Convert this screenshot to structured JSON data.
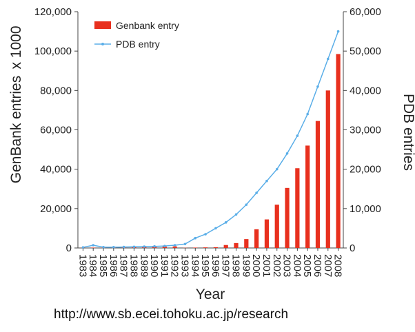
{
  "chart_data": {
    "type": "bar",
    "xlabel": "Year",
    "y_left_label": "GenBank entries",
    "y_left_unit": "x 1000",
    "y_right_label": "PDB entries",
    "y_left_lim": [
      0,
      120000
    ],
    "y_right_lim": [
      0,
      60000
    ],
    "y_left_ticks": [
      "0",
      "20,000",
      "40,000",
      "60,000",
      "80,000",
      "100,000",
      "120,000"
    ],
    "y_right_ticks": [
      "0",
      "10,000",
      "20,000",
      "30,000",
      "40,000",
      "50,000",
      "60,000"
    ],
    "grid": false,
    "legend_position": "top-left",
    "categories": [
      "1983",
      "1984",
      "1985",
      "1986",
      "1987",
      "1988",
      "1989",
      "1990",
      "1991",
      "1992",
      "1993",
      "1994",
      "1995",
      "1996",
      "1997",
      "1998",
      "1999",
      "2000",
      "2001",
      "2002",
      "2003",
      "2004",
      "2005",
      "2006",
      "2007",
      "2008"
    ],
    "series": [
      {
        "name": "Genbank entry",
        "type": "bar",
        "axis": "left",
        "color": "#e8301e",
        "values": [
          100,
          200,
          200,
          300,
          300,
          400,
          500,
          600,
          700,
          800,
          100,
          200,
          300,
          400,
          1500,
          2500,
          4500,
          9500,
          14500,
          22000,
          30500,
          40500,
          52000,
          64500,
          80000,
          98500
        ]
      },
      {
        "name": "PDB entry",
        "type": "line",
        "axis": "right",
        "color": "#5aaee8",
        "values": [
          150,
          700,
          200,
          200,
          250,
          300,
          350,
          400,
          500,
          700,
          1000,
          2500,
          3500,
          5000,
          6500,
          8500,
          11000,
          14000,
          17000,
          20000,
          24000,
          28500,
          34000,
          41000,
          48000,
          55000
        ]
      }
    ]
  },
  "footer": {
    "source_url": "http://www.sb.ecei.tohoku.ac.jp/research"
  }
}
